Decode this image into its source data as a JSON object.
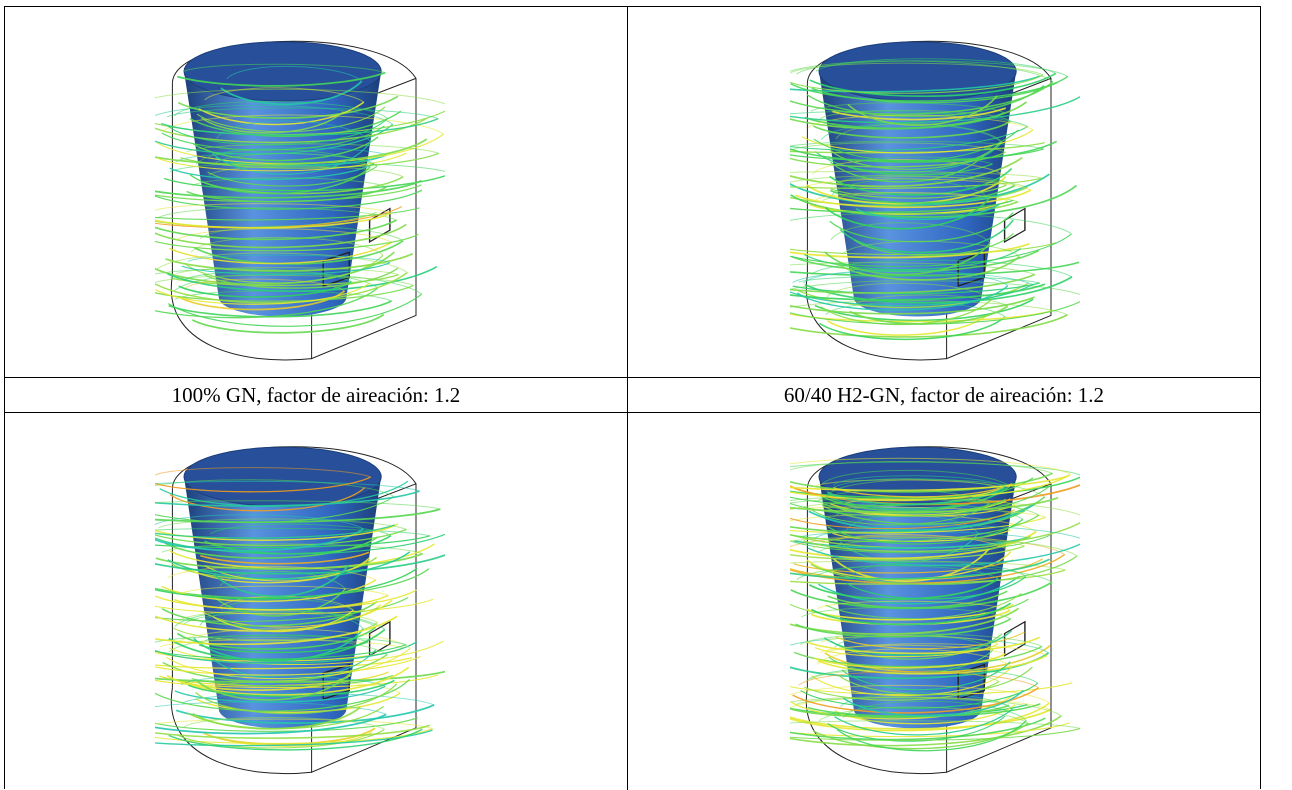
{
  "figures": [
    {
      "caption": "100% GN, factor de aireación: 1.2",
      "density": 0.9,
      "warm": 0.35,
      "seed": 3
    },
    {
      "caption": "60/40 H2-GN, factor de aireación: 1.2",
      "density": 1.1,
      "warm": 0.3,
      "seed": 7
    },
    {
      "caption": "",
      "density": 1.25,
      "warm": 0.75,
      "seed": 11
    },
    {
      "caption": "",
      "density": 1.45,
      "warm": 0.65,
      "seed": 19
    }
  ],
  "colors": {
    "cylinder_dark": "#1c3f7a",
    "cylinder_light": "#5a93e0",
    "cylinder_top": "#274f9a",
    "streamline_green": "#2fd35a",
    "streamline_cyan": "#22c7b0",
    "streamline_yellow": "#e4e830",
    "streamline_orange": "#f09a1e",
    "outline": "#222222"
  }
}
